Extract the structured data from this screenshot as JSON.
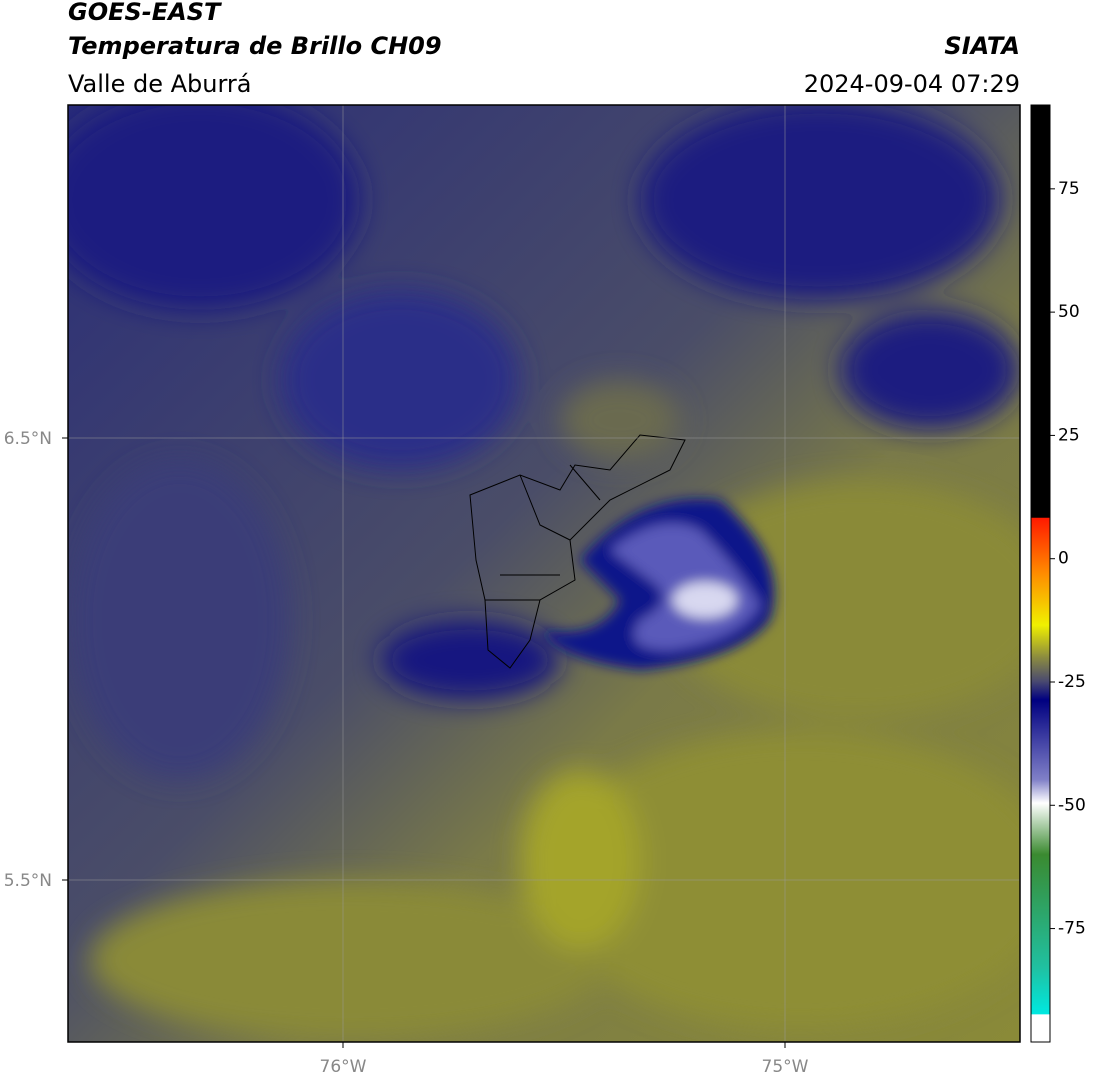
{
  "header": {
    "title": "GOES-EAST",
    "subtitle": "Temperatura de Brillo CH09",
    "region": "Valle de Aburrá",
    "source": "SIATA",
    "datetime": "2024-09-04 07:29"
  },
  "map": {
    "lat_labels": [
      "6.5°N",
      "5.5°N"
    ],
    "lon_labels": [
      "76°W",
      "75°W"
    ]
  },
  "colorbar": {
    "lim": [
      -98,
      92
    ],
    "ticks": [
      75,
      50,
      25,
      0,
      -25,
      -50,
      -75
    ]
  }
}
